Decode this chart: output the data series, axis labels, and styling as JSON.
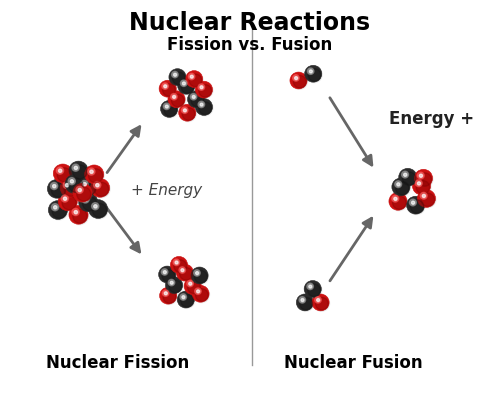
{
  "title": "Nuclear Reactions",
  "subtitle": "Fission vs. Fusion",
  "label_fission": "Nuclear Fission",
  "label_fusion": "Nuclear Fusion",
  "label_energy_fission": "+ Energy",
  "label_energy_fusion": "Energy +",
  "bg_color": "#ffffff",
  "red_color": "#cc1111",
  "black_color": "#333333",
  "arrow_color": "#666666",
  "divider_color": "#999999",
  "title_fontsize": 17,
  "subtitle_fontsize": 12,
  "label_fontsize": 12,
  "energy_fontsize": 11
}
